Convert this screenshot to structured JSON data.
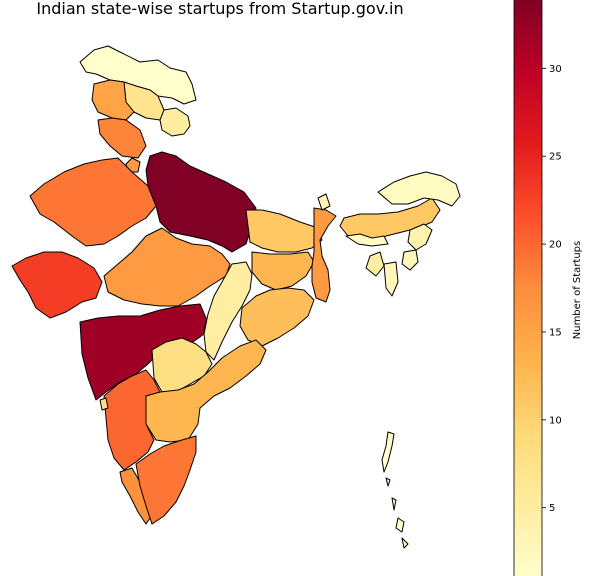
{
  "title": "Indian state-wise startups from Startup.gov.in",
  "colorbar": {
    "label": "Number of Startups",
    "min": 1,
    "max": 34,
    "ticks": [
      5,
      10,
      15,
      20,
      25,
      30
    ],
    "colormap": "YlOrRd",
    "stops": [
      "#ffffcc",
      "#ffeda0",
      "#fed976",
      "#feb24c",
      "#fd8d3c",
      "#fc4e2a",
      "#e31a1c",
      "#bd0026",
      "#800026"
    ]
  },
  "map": {
    "regions": [
      {
        "name": "Jammu & Kashmir / Ladakh",
        "value": 1
      },
      {
        "name": "Himachal Pradesh",
        "value": 7
      },
      {
        "name": "Punjab",
        "value": 15
      },
      {
        "name": "Uttarakhand",
        "value": 5
      },
      {
        "name": "Haryana",
        "value": 18
      },
      {
        "name": "Delhi",
        "value": 16
      },
      {
        "name": "Rajasthan",
        "value": 19
      },
      {
        "name": "Uttar Pradesh",
        "value": 34
      },
      {
        "name": "Gujarat",
        "value": 23
      },
      {
        "name": "Madhya Pradesh",
        "value": 16
      },
      {
        "name": "Bihar",
        "value": 11
      },
      {
        "name": "Jharkhand",
        "value": 13
      },
      {
        "name": "West Bengal",
        "value": 16
      },
      {
        "name": "Chhattisgarh",
        "value": 5
      },
      {
        "name": "Odisha",
        "value": 12
      },
      {
        "name": "Maharashtra",
        "value": 32
      },
      {
        "name": "Telangana",
        "value": 8
      },
      {
        "name": "Andhra Pradesh",
        "value": 13
      },
      {
        "name": "Karnataka",
        "value": 20
      },
      {
        "name": "Goa",
        "value": 8
      },
      {
        "name": "Kerala",
        "value": 17
      },
      {
        "name": "Tamil Nadu",
        "value": 19
      },
      {
        "name": "Sikkim",
        "value": 3
      },
      {
        "name": "Assam",
        "value": 11
      },
      {
        "name": "Arunachal Pradesh",
        "value": 2
      },
      {
        "name": "Meghalaya",
        "value": 2
      },
      {
        "name": "Nagaland",
        "value": 4
      },
      {
        "name": "Manipur",
        "value": 3
      },
      {
        "name": "Tripura",
        "value": 5
      },
      {
        "name": "Mizoram",
        "value": 3
      },
      {
        "name": "Andaman & Nicobar Islands",
        "value": 1
      }
    ]
  }
}
